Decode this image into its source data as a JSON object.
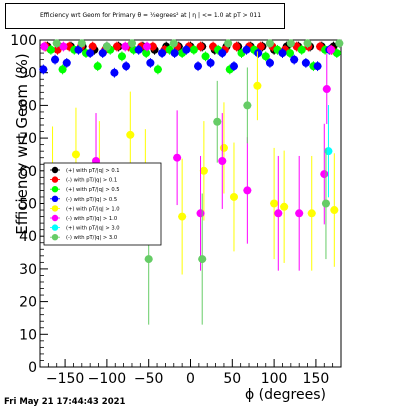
{
  "title": "Efficiency wrt Geom for Primary θ = ½egrees² at | η | <= 1.0 at pT > 011",
  "datestamp": "Fri May 21 17:44:43 2021",
  "chart_data": {
    "type": "scatter",
    "xlabel": "ϕ (degrees)",
    "ylabel": "Efficiency wrt Geom (%)",
    "xlim": [
      -180,
      180
    ],
    "ylim": [
      0,
      100
    ],
    "x_ticks": [
      -150,
      -100,
      -50,
      0,
      50,
      100,
      150
    ],
    "y_ticks": [
      0,
      10,
      20,
      30,
      40,
      50,
      60,
      70,
      80,
      90,
      100
    ],
    "grid": false,
    "legend_position": "left-middle",
    "series": [
      {
        "name": "(+) with pT/|q| > 0.1",
        "color": "#000000",
        "x": [
          -171,
          -157,
          -143,
          -129,
          -115,
          -100,
          -86,
          -72,
          -57,
          -43,
          -29,
          -14,
          0,
          14,
          29,
          43,
          57,
          72,
          86,
          100,
          115,
          129,
          143,
          157,
          171
        ],
        "y": [
          98,
          98,
          98,
          98,
          97,
          98,
          98,
          98,
          98,
          97,
          98,
          98,
          98,
          98,
          97,
          98,
          98,
          98,
          98,
          97,
          98,
          98,
          98,
          98,
          98
        ]
      },
      {
        "name": "(-) with pT/|q| > 0.1",
        "color": "#ff0000",
        "x": [
          -173,
          -159,
          -145,
          -131,
          -117,
          -102,
          -88,
          -74,
          -59,
          -45,
          -31,
          -16,
          -2,
          12,
          27,
          41,
          55,
          70,
          84,
          98,
          113,
          127,
          141,
          155,
          169
        ],
        "y": [
          98,
          97,
          98,
          98,
          98,
          97,
          98,
          98,
          98,
          98,
          97,
          98,
          98,
          98,
          98,
          97,
          98,
          98,
          98,
          98,
          97,
          98,
          98,
          98,
          97
        ]
      },
      {
        "name": "(+) with pT/|q| > 0.5",
        "color": "#00ff00",
        "x": [
          -167,
          -153,
          -139,
          -125,
          -111,
          -96,
          -82,
          -68,
          -53,
          -39,
          -25,
          -10,
          4,
          18,
          33,
          47,
          61,
          76,
          90,
          104,
          119,
          133,
          147,
          161,
          175
        ],
        "y": [
          97,
          91,
          97,
          96,
          92,
          97,
          95,
          97,
          96,
          91,
          97,
          96,
          97,
          95,
          97,
          91,
          96,
          97,
          95,
          97,
          96,
          97,
          92,
          97,
          96
        ]
      },
      {
        "name": "(-) with pT/|q| > 0.5",
        "color": "#0000ff",
        "x": [
          -176,
          -162,
          -148,
          -134,
          -120,
          -105,
          -91,
          -77,
          -62,
          -48,
          -34,
          -19,
          -5,
          9,
          24,
          38,
          52,
          67,
          81,
          95,
          110,
          124,
          138,
          152,
          166
        ],
        "y": [
          91,
          94,
          93,
          97,
          96,
          96,
          90,
          92,
          97,
          93,
          96,
          96,
          97,
          92,
          93,
          96,
          92,
          97,
          96,
          93,
          96,
          94,
          93,
          92,
          97
        ]
      },
      {
        "name": "(+) with pT/|q| > 1.0",
        "color": "#ffff00",
        "x": [
          -165,
          -137,
          -109,
          -72,
          -54,
          -10,
          16,
          40,
          52,
          80,
          100,
          112,
          145,
          172
        ],
        "y": [
          58,
          65,
          60,
          71,
          57,
          46,
          60,
          67,
          52,
          86,
          50,
          49,
          47,
          48
        ]
      },
      {
        "name": "(-) with pT/|q| > 1.0",
        "color": "#ff00ff",
        "x": [
          -175,
          -152,
          -113,
          -78,
          -52,
          -16,
          12,
          38,
          68,
          105,
          130,
          160,
          163,
          168
        ],
        "y": [
          98,
          98,
          63,
          98,
          98,
          64,
          47,
          63,
          54,
          47,
          47,
          59,
          85,
          97
        ]
      },
      {
        "name": "(+) with pT/|q| > 3.0",
        "color": "#00ffff",
        "x": [
          165
        ],
        "y": [
          66
        ]
      },
      {
        "name": "(-) with pT/|q| > 3.0",
        "color": "#66cc66",
        "x": [
          -50,
          14,
          32,
          68,
          162,
          -160,
          -130,
          -100,
          -70,
          -20,
          45,
          95,
          120,
          140,
          178
        ],
        "y": [
          33,
          33,
          75,
          80,
          50,
          99,
          99,
          98,
          99,
          99,
          99,
          99,
          99,
          99,
          99
        ]
      }
    ]
  }
}
